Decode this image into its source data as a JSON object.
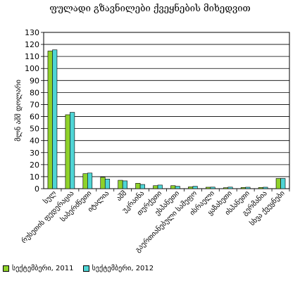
{
  "chart_data": {
    "type": "bar",
    "title": "ფულადი გზავნილები ქვეყნების მიხედვით",
    "ylabel": "მლნ აშშ დოლარი",
    "xlabel": "",
    "ylim": [
      0,
      130
    ],
    "yticks": [
      0,
      10,
      20,
      30,
      40,
      50,
      60,
      70,
      80,
      90,
      100,
      110,
      120,
      130
    ],
    "grid": true,
    "legend_position": "bottom-left",
    "categories": [
      "სულ",
      "რუსეთის ფედერაცია",
      "საბერძნეთი",
      "იტალია",
      "აშშ",
      "უკრაინა",
      "თურქეთი",
      "ესპანეთი",
      "გაერთიანებული სამეფო",
      "ისრაელი",
      "ყაზახეთი",
      "ისპანეთი",
      "გერმანია",
      "სხვა ქვეყნები"
    ],
    "series": [
      {
        "name": "სექტემბერი, 2011",
        "color": "#8FD22A",
        "values": [
          114.5,
          61.5,
          12.5,
          9.5,
          7,
          4.5,
          2.5,
          2.5,
          1.5,
          1.2,
          0.8,
          1,
          1,
          8.5
        ]
      },
      {
        "name": "სექტემბერი, 2012",
        "color": "#4FD5D5",
        "values": [
          115.5,
          63.5,
          13,
          8,
          6.5,
          3.5,
          3,
          2,
          2,
          1.3,
          1.3,
          1.2,
          1.2,
          8.5
        ]
      }
    ]
  }
}
